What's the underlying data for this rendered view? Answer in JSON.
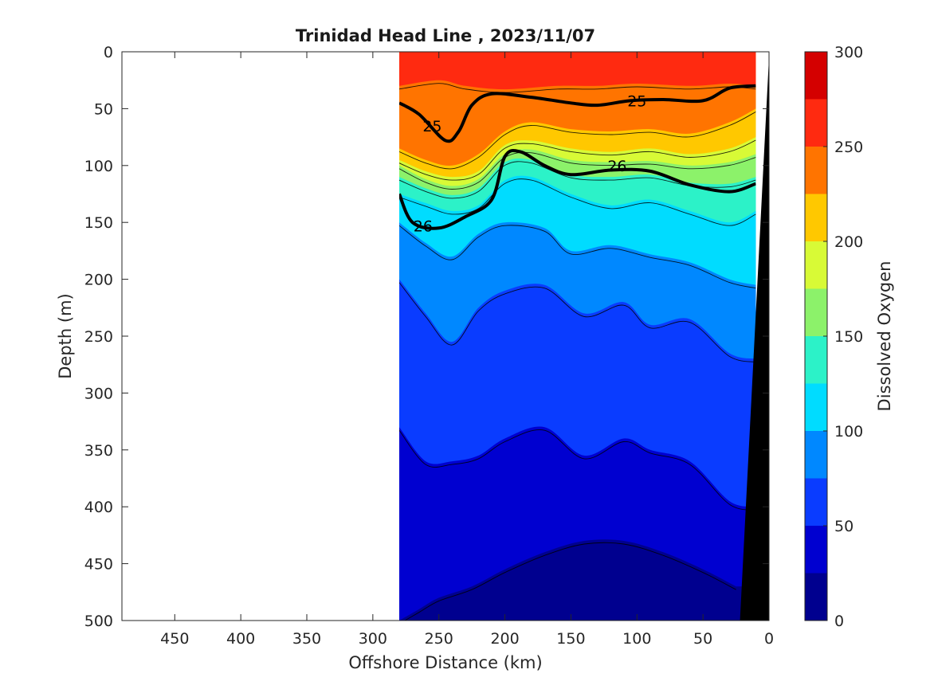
{
  "chart_data": {
    "type": "contour",
    "title": "Trinidad Head Line , 2023/11/07",
    "xlabel": "Offshore Distance (km)",
    "ylabel": "Depth (m)",
    "colorbar_label": "Dissolved Oxygen",
    "xlim": [
      490,
      0
    ],
    "ylim": [
      0,
      500
    ],
    "x_reversed": true,
    "y_reversed": true,
    "xticks": [
      450,
      400,
      350,
      300,
      250,
      200,
      150,
      100,
      50,
      0
    ],
    "yticks": [
      0,
      50,
      100,
      150,
      200,
      250,
      300,
      350,
      400,
      450,
      500
    ],
    "colorbar": {
      "range": [
        0,
        300
      ],
      "ticks": [
        0,
        50,
        100,
        150,
        200,
        250,
        300
      ],
      "levels": [
        0,
        25,
        50,
        75,
        100,
        125,
        150,
        175,
        200,
        225,
        250,
        275,
        300
      ],
      "colors": [
        "#00008f",
        "#0000d0",
        "#0a3cff",
        "#0088ff",
        "#00dcff",
        "#2cf2c8",
        "#8cf26a",
        "#d8fa36",
        "#ffc800",
        "#ff7400",
        "#ff2a10",
        "#d40000"
      ]
    },
    "section_extent_km": [
      280,
      10
    ],
    "oxygen_boundaries": [
      {
        "level": 250,
        "depth": [
          [
            280,
            30
          ],
          [
            250,
            25
          ],
          [
            230,
            30
          ],
          [
            200,
            33
          ],
          [
            160,
            30
          ],
          [
            130,
            30
          ],
          [
            100,
            28
          ],
          [
            60,
            30
          ],
          [
            30,
            28
          ],
          [
            10,
            30
          ]
        ]
      },
      {
        "level": 225,
        "depth": [
          [
            280,
            85
          ],
          [
            260,
            95
          ],
          [
            240,
            100
          ],
          [
            220,
            90
          ],
          [
            200,
            70
          ],
          [
            180,
            62
          ],
          [
            150,
            68
          ],
          [
            120,
            70
          ],
          [
            90,
            68
          ],
          [
            60,
            72
          ],
          [
            30,
            62
          ],
          [
            10,
            50
          ]
        ]
      },
      {
        "level": 200,
        "depth": [
          [
            280,
            95
          ],
          [
            260,
            105
          ],
          [
            240,
            110
          ],
          [
            220,
            105
          ],
          [
            200,
            82
          ],
          [
            180,
            78
          ],
          [
            150,
            85
          ],
          [
            120,
            88
          ],
          [
            90,
            85
          ],
          [
            60,
            90
          ],
          [
            30,
            85
          ],
          [
            10,
            75
          ]
        ]
      },
      {
        "level": 175,
        "depth": [
          [
            280,
            100
          ],
          [
            260,
            112
          ],
          [
            240,
            118
          ],
          [
            220,
            112
          ],
          [
            200,
            90
          ],
          [
            180,
            86
          ],
          [
            150,
            95
          ],
          [
            120,
            97
          ],
          [
            90,
            96
          ],
          [
            60,
            100
          ],
          [
            30,
            97
          ],
          [
            10,
            90
          ]
        ]
      },
      {
        "level": 150,
        "depth": [
          [
            280,
            110
          ],
          [
            260,
            120
          ],
          [
            240,
            126
          ],
          [
            220,
            120
          ],
          [
            200,
            97
          ],
          [
            180,
            95
          ],
          [
            150,
            108
          ],
          [
            120,
            110
          ],
          [
            90,
            108
          ],
          [
            60,
            115
          ],
          [
            30,
            116
          ],
          [
            10,
            110
          ]
        ]
      },
      {
        "level": 125,
        "depth": [
          [
            280,
            125
          ],
          [
            260,
            133
          ],
          [
            240,
            140
          ],
          [
            220,
            135
          ],
          [
            200,
            113
          ],
          [
            180,
            110
          ],
          [
            150,
            125
          ],
          [
            120,
            135
          ],
          [
            90,
            130
          ],
          [
            60,
            140
          ],
          [
            30,
            150
          ],
          [
            10,
            140
          ]
        ]
      },
      {
        "level": 100,
        "depth": [
          [
            280,
            150
          ],
          [
            260,
            168
          ],
          [
            240,
            180
          ],
          [
            220,
            160
          ],
          [
            200,
            150
          ],
          [
            170,
            155
          ],
          [
            150,
            175
          ],
          [
            120,
            170
          ],
          [
            90,
            178
          ],
          [
            60,
            185
          ],
          [
            30,
            200
          ],
          [
            10,
            205
          ]
        ]
      },
      {
        "level": 75,
        "depth": [
          [
            280,
            200
          ],
          [
            260,
            230
          ],
          [
            240,
            255
          ],
          [
            220,
            225
          ],
          [
            200,
            210
          ],
          [
            170,
            205
          ],
          [
            140,
            230
          ],
          [
            110,
            220
          ],
          [
            90,
            240
          ],
          [
            60,
            235
          ],
          [
            30,
            265
          ],
          [
            10,
            270
          ]
        ]
      },
      {
        "level": 50,
        "depth": [
          [
            280,
            330
          ],
          [
            260,
            360
          ],
          [
            240,
            360
          ],
          [
            220,
            355
          ],
          [
            200,
            340
          ],
          [
            170,
            330
          ],
          [
            140,
            355
          ],
          [
            110,
            340
          ],
          [
            90,
            350
          ],
          [
            60,
            360
          ],
          [
            30,
            395
          ],
          [
            10,
            400
          ]
        ]
      },
      {
        "level": 25,
        "depth": [
          [
            280,
            500
          ],
          [
            265,
            490
          ],
          [
            250,
            480
          ],
          [
            225,
            470
          ],
          [
            200,
            455
          ],
          [
            170,
            440
          ],
          [
            140,
            430
          ],
          [
            110,
            430
          ],
          [
            80,
            440
          ],
          [
            50,
            455
          ],
          [
            25,
            470
          ]
        ]
      }
    ],
    "density_contours": [
      {
        "label": "25",
        "depth": [
          [
            280,
            45
          ],
          [
            265,
            55
          ],
          [
            245,
            78
          ],
          [
            235,
            70
          ],
          [
            225,
            47
          ],
          [
            210,
            37
          ],
          [
            180,
            40
          ],
          [
            150,
            45
          ],
          [
            130,
            47
          ],
          [
            105,
            43
          ],
          [
            80,
            42
          ],
          [
            50,
            43
          ],
          [
            30,
            32
          ],
          [
            10,
            30
          ]
        ]
      },
      {
        "label": "26",
        "depth": [
          [
            280,
            125
          ],
          [
            270,
            150
          ],
          [
            250,
            155
          ],
          [
            230,
            145
          ],
          [
            210,
            130
          ],
          [
            200,
            92
          ],
          [
            188,
            88
          ],
          [
            170,
            100
          ],
          [
            150,
            108
          ],
          [
            120,
            104
          ],
          [
            90,
            105
          ],
          [
            60,
            117
          ],
          [
            30,
            123
          ],
          [
            10,
            116
          ]
        ]
      }
    ],
    "bathymetry_edge_km": [
      [
        0,
        5
      ],
      [
        22,
        500
      ]
    ]
  }
}
